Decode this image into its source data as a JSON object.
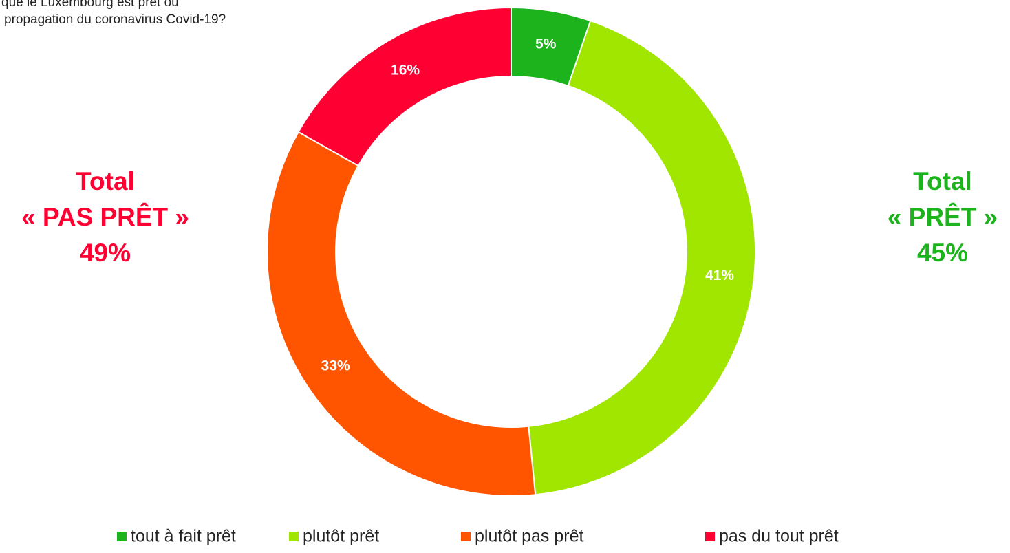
{
  "chart_data": {
    "type": "donut",
    "title_lines": [
      "que le Luxembourg est prêt ou",
      "propagation du coronavirus Covid-19?"
    ],
    "categories": [
      "tout à fait prêt",
      "plutôt prêt",
      "plutôt pas prêt",
      "pas du tout prêt"
    ],
    "values": [
      5,
      41,
      33,
      16
    ],
    "value_labels": [
      "5%",
      "41%",
      "33%",
      "16%"
    ],
    "colors": [
      "#1db31d",
      "#a0e600",
      "#ff5400",
      "#ff0033"
    ],
    "annotations": [
      {
        "lines": [
          "Total",
          "« PAS PRÊT »",
          "49%"
        ],
        "color": "#ff0033",
        "side": "left"
      },
      {
        "lines": [
          "Total",
          "« PRÊT »",
          "45%"
        ],
        "color": "#1db31d",
        "side": "right"
      }
    ],
    "legend": "bottom"
  }
}
